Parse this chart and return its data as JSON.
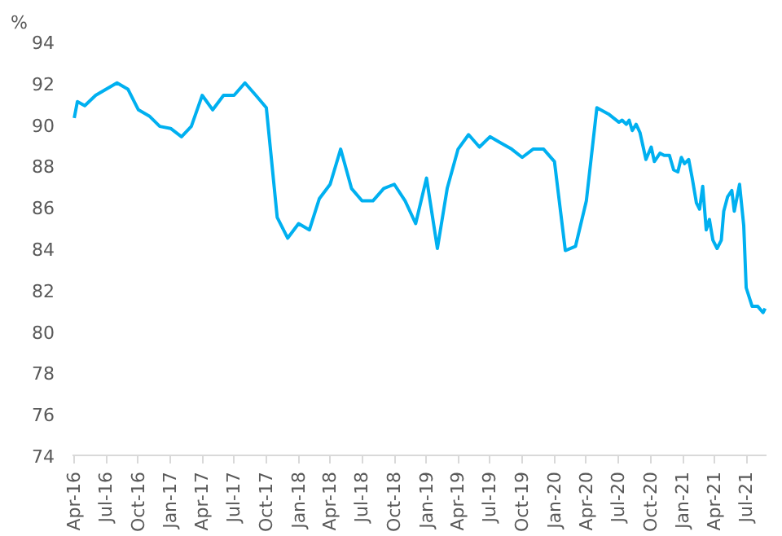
{
  "chart_data": {
    "type": "line",
    "ylabel": "%",
    "x": [
      "2016-04-01",
      "2016-04-10",
      "2016-05-01",
      "2016-06-01",
      "2016-07-01",
      "2016-08-01",
      "2016-09-01",
      "2016-10-01",
      "2016-11-01",
      "2016-12-01",
      "2017-01-01",
      "2017-02-01",
      "2017-03-01",
      "2017-04-01",
      "2017-05-01",
      "2017-06-01",
      "2017-07-01",
      "2017-08-01",
      "2017-09-01",
      "2017-10-01",
      "2017-11-01",
      "2017-12-01",
      "2018-01-01",
      "2018-02-01",
      "2018-03-01",
      "2018-04-01",
      "2018-05-01",
      "2018-06-01",
      "2018-07-01",
      "2018-08-01",
      "2018-09-01",
      "2018-10-01",
      "2018-11-01",
      "2018-12-01",
      "2019-01-01",
      "2019-02-01",
      "2019-03-01",
      "2019-04-01",
      "2019-05-01",
      "2019-06-01",
      "2019-07-01",
      "2019-08-01",
      "2019-09-01",
      "2019-10-01",
      "2019-11-01",
      "2019-12-01",
      "2020-01-01",
      "2020-02-01",
      "2020-03-01",
      "2020-04-01",
      "2020-05-01",
      "2020-06-03",
      "2020-07-03",
      "2020-07-12",
      "2020-07-24",
      "2020-08-01",
      "2020-08-10",
      "2020-08-21",
      "2020-09-01",
      "2020-09-18",
      "2020-10-03",
      "2020-10-12",
      "2020-10-28",
      "2020-11-09",
      "2020-11-24",
      "2020-12-06",
      "2020-12-18",
      "2020-12-28",
      "2021-01-06",
      "2021-01-18",
      "2021-01-28",
      "2021-02-09",
      "2021-02-18",
      "2021-02-27",
      "2021-03-09",
      "2021-03-18",
      "2021-03-28",
      "2021-04-09",
      "2021-04-21",
      "2021-04-28",
      "2021-05-09",
      "2021-05-21",
      "2021-05-28",
      "2021-06-12",
      "2021-06-24",
      "2021-07-01",
      "2021-07-18",
      "2021-08-03",
      "2021-08-18",
      "2021-08-24"
    ],
    "series": [
      {
        "color": "#00b0f0",
        "values": [
          90.3,
          91.1,
          90.9,
          91.4,
          91.7,
          92.0,
          91.7,
          90.7,
          90.4,
          89.9,
          89.8,
          89.4,
          89.9,
          91.4,
          90.7,
          91.4,
          91.4,
          92.0,
          91.4,
          90.8,
          85.5,
          84.5,
          85.2,
          84.9,
          86.4,
          87.1,
          88.8,
          86.9,
          86.3,
          86.3,
          86.9,
          87.1,
          86.3,
          85.2,
          87.4,
          84.0,
          86.9,
          88.8,
          89.5,
          88.9,
          89.4,
          89.1,
          88.8,
          88.4,
          88.8,
          88.8,
          88.2,
          83.9,
          84.1,
          86.3,
          90.8,
          90.5,
          90.1,
          90.2,
          90.0,
          90.2,
          89.7,
          90.0,
          89.6,
          88.3,
          88.9,
          88.2,
          88.6,
          88.5,
          88.5,
          87.8,
          87.7,
          88.4,
          88.1,
          88.3,
          87.4,
          86.2,
          85.9,
          87.0,
          84.9,
          85.4,
          84.4,
          84.0,
          84.4,
          85.8,
          86.5,
          86.8,
          85.8,
          87.1,
          85.1,
          82.1,
          81.2,
          81.2,
          80.9,
          81.1
        ]
      }
    ],
    "xlim": [
      "2016-03-27",
      "2021-08-28"
    ],
    "xticks": [
      {
        "value": "2016-04-01",
        "label": "Apr-16"
      },
      {
        "value": "2016-07-01",
        "label": "Jul-16"
      },
      {
        "value": "2016-10-01",
        "label": "Oct-16"
      },
      {
        "value": "2017-01-01",
        "label": "Jan-17"
      },
      {
        "value": "2017-04-01",
        "label": "Apr-17"
      },
      {
        "value": "2017-07-01",
        "label": "Jul-17"
      },
      {
        "value": "2017-10-01",
        "label": "Oct-17"
      },
      {
        "value": "2018-01-01",
        "label": "Jan-18"
      },
      {
        "value": "2018-04-01",
        "label": "Apr-18"
      },
      {
        "value": "2018-07-01",
        "label": "Jul-18"
      },
      {
        "value": "2018-10-01",
        "label": "Oct-18"
      },
      {
        "value": "2019-01-01",
        "label": "Jan-19"
      },
      {
        "value": "2019-04-01",
        "label": "Apr-19"
      },
      {
        "value": "2019-07-01",
        "label": "Jul-19"
      },
      {
        "value": "2019-10-01",
        "label": "Oct-19"
      },
      {
        "value": "2020-01-01",
        "label": "Jan-20"
      },
      {
        "value": "2020-04-01",
        "label": "Apr-20"
      },
      {
        "value": "2020-07-01",
        "label": "Jul-20"
      },
      {
        "value": "2020-10-01",
        "label": "Oct-20"
      },
      {
        "value": "2021-01-01",
        "label": "Jan-21"
      },
      {
        "value": "2021-04-01",
        "label": "Apr-21"
      },
      {
        "value": "2021-07-01",
        "label": "Jul-21"
      }
    ],
    "ylim": [
      74,
      94
    ],
    "yticks": [
      74,
      76,
      78,
      80,
      82,
      84,
      86,
      88,
      90,
      92,
      94
    ],
    "grid": false,
    "marker": "none",
    "line_style": "solid"
  }
}
